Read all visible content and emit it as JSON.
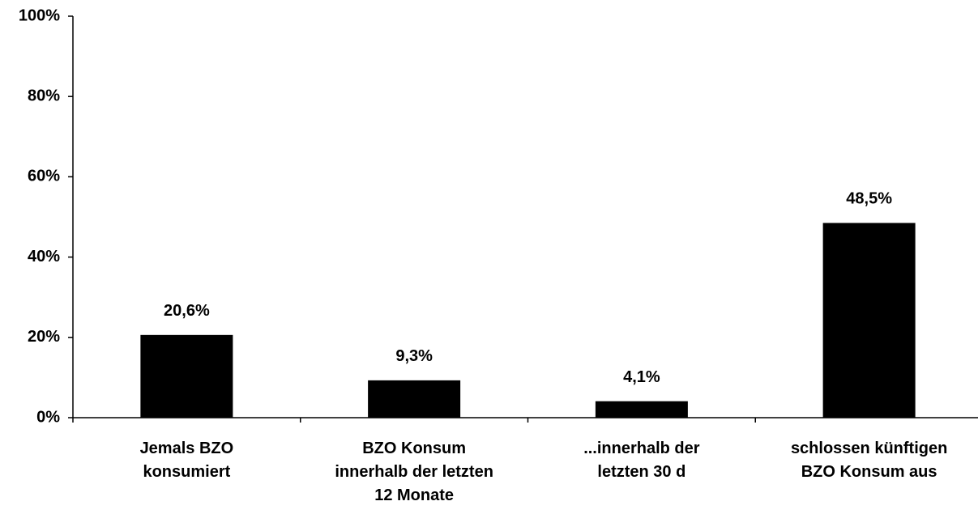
{
  "chart_data": {
    "type": "bar",
    "categories": [
      "Jemals BZO\nkonsumiert",
      "BZO Konsum\ninnerhalb der letzten\n12 Monate",
      "...innerhalb der\nletzten 30 d",
      "schlossen künftigen\nBZO Konsum aus"
    ],
    "values": [
      20.6,
      9.3,
      4.1,
      48.5
    ],
    "value_labels": [
      "20,6%",
      "9,3%",
      "4,1%",
      "48,5%"
    ],
    "color": "#000000",
    "ylim": [
      0,
      100
    ],
    "yticks": [
      {
        "value": 0,
        "label": "0%"
      },
      {
        "value": 20,
        "label": "20%"
      },
      {
        "value": 40,
        "label": "40%"
      },
      {
        "value": 60,
        "label": "60%"
      },
      {
        "value": 80,
        "label": "80%"
      },
      {
        "value": 100,
        "label": "100%"
      }
    ],
    "grid": false
  }
}
